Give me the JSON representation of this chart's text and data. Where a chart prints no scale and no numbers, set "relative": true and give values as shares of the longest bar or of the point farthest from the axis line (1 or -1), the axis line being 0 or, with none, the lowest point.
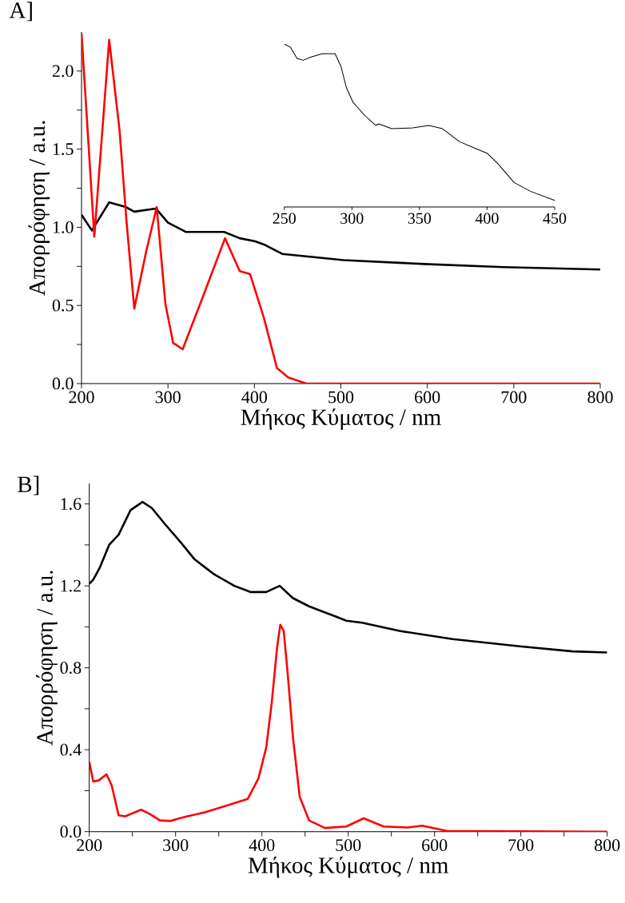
{
  "chart_data": [
    {
      "type": "line",
      "title": "A]",
      "xlabel": "Μήκος Κύματος / nm",
      "ylabel": "Απορρόφηση / a.u.",
      "xlim": [
        200,
        800
      ],
      "ylim": [
        0,
        2.25
      ],
      "xticks": [
        200,
        300,
        400,
        500,
        600,
        700,
        800
      ],
      "yticks": [
        {
          "value": 0,
          "label": "0.0"
        },
        {
          "value": 0.25,
          "label": null
        },
        0.5,
        {
          "value": 0.75,
          "label": null
        },
        {
          "value": 1,
          "label": "1.0"
        },
        {
          "value": 1.25,
          "label": null
        },
        1.5,
        {
          "value": 1.75,
          "label": null
        },
        {
          "value": 2,
          "label": "2.0"
        }
      ],
      "series": [
        {
          "color": "#000000",
          "x": [
            200,
            212,
            232,
            251,
            261,
            286,
            300,
            321,
            365,
            383,
            401,
            411,
            432,
            503,
            596,
            688,
            800
          ],
          "values": [
            1.08,
            0.98,
            1.16,
            1.13,
            1.1,
            1.12,
            1.03,
            0.97,
            0.97,
            0.93,
            0.91,
            0.89,
            0.83,
            0.79,
            0.765,
            0.745,
            0.73
          ]
        },
        {
          "color": "#ff0000",
          "x": [
            200,
            214.8,
            232,
            244,
            252,
            261,
            275,
            287,
            297,
            306,
            317,
            340,
            366,
            383,
            395,
            411,
            426,
            439,
            460,
            800
          ],
          "values": [
            2.24,
            0.94,
            2.2,
            1.62,
            1.04,
            0.48,
            0.85,
            1.13,
            0.51,
            0.26,
            0.22,
            0.55,
            0.93,
            0.72,
            0.7,
            0.42,
            0.1,
            0.04,
            0,
            0
          ]
        }
      ]
    },
    {
      "type": "line",
      "relative": true,
      "tick_labels": "x",
      "xlim": [
        250,
        450
      ],
      "xticks": [
        250,
        300,
        350,
        400,
        450
      ],
      "series": [
        {
          "color": "#000000",
          "x": [
            250,
            254.5,
            259.5,
            264,
            270,
            278,
            287.6,
            292,
            296,
            301,
            309.7,
            317.6,
            320,
            329.4,
            345,
            357,
            367,
            379.7,
            392.5,
            400,
            408,
            420,
            432,
            450
          ],
          "values": [
            1.0,
            0.98,
            0.91,
            0.9,
            0.92,
            0.94,
            0.94,
            0.86,
            0.73,
            0.64,
            0.56,
            0.5,
            0.51,
            0.48,
            0.485,
            0.5,
            0.48,
            0.4,
            0.355,
            0.33,
            0.265,
            0.15,
            0.096,
            0.04
          ]
        }
      ]
    },
    {
      "type": "line",
      "title": "B]",
      "xlabel": "Μήκος Κύματος / nm",
      "ylabel": "Απορρόφηση / a.u.",
      "xlim": [
        200,
        800
      ],
      "ylim": [
        0,
        1.7
      ],
      "xticks": [
        200,
        {
          "value": 250,
          "label": null
        },
        300,
        {
          "value": 350,
          "label": null
        },
        400,
        {
          "value": 450,
          "label": null
        },
        500,
        {
          "value": 550,
          "label": null
        },
        600,
        {
          "value": 650,
          "label": null
        },
        700,
        {
          "value": 750,
          "label": null
        },
        800
      ],
      "yticks": [
        {
          "value": 0,
          "label": "0.0"
        },
        {
          "value": 0.2,
          "label": null
        },
        0.4,
        {
          "value": 0.6,
          "label": null
        },
        0.8,
        {
          "value": 1,
          "label": null
        },
        1.2,
        {
          "value": 1.4,
          "label": null
        },
        1.6
      ],
      "series": [
        {
          "color": "#000000",
          "x": [
            200,
            204.6,
            212.3,
            223,
            234,
            247.8,
            261.7,
            272.5,
            288,
            306.5,
            321.9,
            343.5,
            368,
            386.7,
            405,
            420.6,
            436,
            454.6,
            485.5,
            497.8,
            516,
            559.5,
            621,
            698.4,
            760,
            800
          ],
          "values": [
            1.21,
            1.23,
            1.29,
            1.4,
            1.45,
            1.57,
            1.61,
            1.58,
            1.5,
            1.41,
            1.33,
            1.26,
            1.2,
            1.17,
            1.17,
            1.2,
            1.14,
            1.1,
            1.05,
            1.03,
            1.02,
            0.98,
            0.94,
            0.905,
            0.88,
            0.875
          ]
        },
        {
          "color": "#ff0000",
          "x": [
            200,
            204.6,
            210.8,
            220,
            226,
            234,
            241.7,
            260,
            269.4,
            281.8,
            294,
            312.6,
            334,
            355.8,
            383.6,
            396,
            405,
            411.4,
            417.6,
            421.3,
            425.3,
            429.9,
            436,
            443.8,
            454.6,
            473,
            497.8,
            517.9,
            541,
            568.8,
            585.7,
            615,
            652,
            800
          ],
          "values": [
            0.34,
            0.245,
            0.25,
            0.28,
            0.225,
            0.08,
            0.075,
            0.107,
            0.088,
            0.055,
            0.052,
            0.074,
            0.094,
            0.123,
            0.16,
            0.26,
            0.41,
            0.63,
            0.9,
            1.01,
            0.98,
            0.77,
            0.46,
            0.17,
            0.055,
            0.018,
            0.025,
            0.065,
            0.025,
            0.02,
            0.029,
            0.003,
            0.003,
            0
          ]
        }
      ]
    }
  ]
}
